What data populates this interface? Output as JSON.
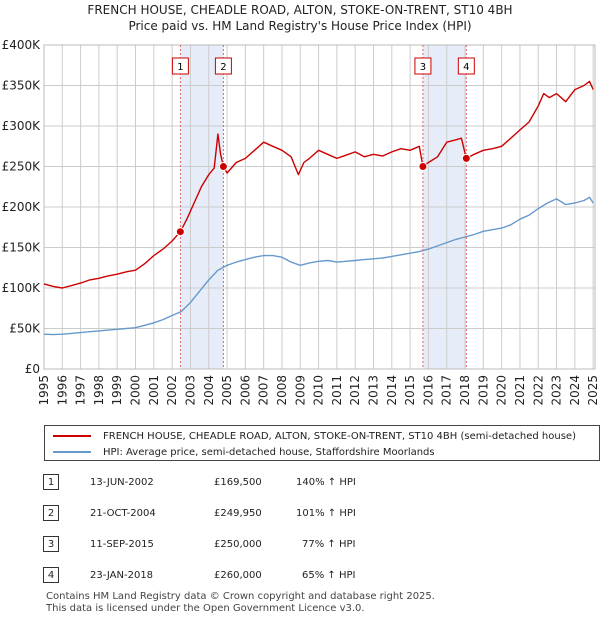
{
  "chart_data": {
    "type": "line",
    "title": "FRENCH HOUSE, CHEADLE ROAD, ALTON, STOKE-ON-TRENT, ST10 4BH",
    "subtitle": "Price paid vs. HM Land Registry's House Price Index (HPI)",
    "xlabel": "",
    "ylabel": "",
    "xlim": [
      1995,
      2025.1
    ],
    "ylim": [
      0,
      400000
    ],
    "y_ticks": [
      0,
      50000,
      100000,
      150000,
      200000,
      250000,
      300000,
      350000,
      400000
    ],
    "y_tick_labels": [
      "£0",
      "£50K",
      "£100K",
      "£150K",
      "£200K",
      "£250K",
      "£300K",
      "£350K",
      "£400K"
    ],
    "x_tick_labels": [
      "1995",
      "1996",
      "1997",
      "1998",
      "1999",
      "2000",
      "2001",
      "2002",
      "2003",
      "2004",
      "2005",
      "2006",
      "2007",
      "2008",
      "2009",
      "2010",
      "2011",
      "2012",
      "2013",
      "2014",
      "2015",
      "2016",
      "2017",
      "2018",
      "2019",
      "2020",
      "2021",
      "2022",
      "2023",
      "2024",
      "2025"
    ],
    "grid": true,
    "shaded_ranges": [
      [
        2002.45,
        2004.8
      ],
      [
        2015.7,
        2018.07
      ]
    ],
    "series": [
      {
        "name": "FRENCH HOUSE, CHEADLE ROAD, ALTON, STOKE-ON-TRENT, ST10 4BH (semi-detached house)",
        "color": "#cc0000",
        "x": [
          1995.0,
          1995.5,
          1996.0,
          1996.5,
          1997.0,
          1997.5,
          1998.0,
          1998.5,
          1999.0,
          1999.5,
          2000.0,
          2000.5,
          2001.0,
          2001.5,
          2002.0,
          2002.45,
          2002.8,
          2003.2,
          2003.6,
          2004.0,
          2004.3,
          2004.5,
          2004.65,
          2004.8,
          2005.0,
          2005.5,
          2006.0,
          2006.5,
          2007.0,
          2007.5,
          2008.0,
          2008.5,
          2008.9,
          2009.2,
          2009.5,
          2010.0,
          2010.5,
          2011.0,
          2011.5,
          2012.0,
          2012.5,
          2013.0,
          2013.5,
          2014.0,
          2014.5,
          2015.0,
          2015.5,
          2015.7,
          2016.0,
          2016.5,
          2017.0,
          2017.5,
          2017.8,
          2018.07,
          2018.5,
          2019.0,
          2019.5,
          2020.0,
          2020.5,
          2021.0,
          2021.5,
          2022.0,
          2022.3,
          2022.6,
          2023.0,
          2023.5,
          2024.0,
          2024.5,
          2024.8,
          2025.0
        ],
        "values": [
          105000,
          102000,
          100000,
          103000,
          106000,
          110000,
          112000,
          115000,
          117000,
          120000,
          122000,
          130000,
          140000,
          148000,
          158000,
          169500,
          185000,
          205000,
          225000,
          240000,
          248000,
          290000,
          265000,
          249950,
          242000,
          255000,
          260000,
          270000,
          280000,
          275000,
          270000,
          262000,
          240000,
          255000,
          260000,
          270000,
          265000,
          260000,
          264000,
          268000,
          262000,
          265000,
          263000,
          268000,
          272000,
          270000,
          275000,
          250000,
          255000,
          262000,
          280000,
          283000,
          285000,
          260000,
          265000,
          270000,
          272000,
          275000,
          285000,
          295000,
          305000,
          325000,
          340000,
          335000,
          340000,
          330000,
          345000,
          350000,
          355000,
          345000
        ]
      },
      {
        "name": "HPI: Average price, semi-detached house, Staffordshire Moorlands",
        "color": "#6699cc",
        "x": [
          1995.0,
          1995.5,
          1996.0,
          1996.5,
          1997.0,
          1997.5,
          1998.0,
          1998.5,
          1999.0,
          1999.5,
          2000.0,
          2000.5,
          2001.0,
          2001.5,
          2002.0,
          2002.5,
          2003.0,
          2003.5,
          2004.0,
          2004.5,
          2005.0,
          2005.5,
          2006.0,
          2006.5,
          2007.0,
          2007.5,
          2008.0,
          2008.5,
          2009.0,
          2009.5,
          2010.0,
          2010.5,
          2011.0,
          2011.5,
          2012.0,
          2012.5,
          2013.0,
          2013.5,
          2014.0,
          2014.5,
          2015.0,
          2015.5,
          2016.0,
          2016.5,
          2017.0,
          2017.5,
          2018.0,
          2018.5,
          2019.0,
          2019.5,
          2020.0,
          2020.5,
          2021.0,
          2021.5,
          2022.0,
          2022.5,
          2023.0,
          2023.5,
          2024.0,
          2024.5,
          2024.8,
          2025.0
        ],
        "values": [
          43000,
          42500,
          43000,
          44000,
          45000,
          46000,
          47000,
          48000,
          49000,
          50000,
          51000,
          54000,
          57000,
          61000,
          66000,
          71000,
          82000,
          96000,
          110000,
          122000,
          128000,
          132000,
          135000,
          138000,
          140000,
          140000,
          138000,
          132000,
          128000,
          131000,
          133000,
          134000,
          132000,
          133000,
          134000,
          135000,
          136000,
          137000,
          139000,
          141000,
          143000,
          145000,
          148000,
          152000,
          156000,
          160000,
          163000,
          166000,
          170000,
          172000,
          174000,
          178000,
          185000,
          190000,
          198000,
          205000,
          210000,
          203000,
          205000,
          208000,
          212000,
          205000
        ]
      }
    ],
    "annotations": [
      {
        "label": "1",
        "x": 2002.45
      },
      {
        "label": "2",
        "x": 2004.8
      },
      {
        "label": "3",
        "x": 2015.7
      },
      {
        "label": "4",
        "x": 2018.07
      }
    ],
    "sale_points": [
      {
        "x": 2002.45,
        "value": 169500
      },
      {
        "x": 2004.8,
        "value": 249950
      },
      {
        "x": 2015.7,
        "value": 250000
      },
      {
        "x": 2018.07,
        "value": 260000
      }
    ]
  },
  "legend": {
    "property_label": "FRENCH HOUSE, CHEADLE ROAD, ALTON, STOKE-ON-TRENT, ST10 4BH (semi-detached house)",
    "hpi_label": "HPI: Average price, semi-detached house, Staffordshire Moorlands"
  },
  "transactions": [
    {
      "num": "1",
      "date": "13-JUN-2002",
      "price": "£169,500",
      "hpi": "140% ↑ HPI"
    },
    {
      "num": "2",
      "date": "21-OCT-2004",
      "price": "£249,950",
      "hpi": "101% ↑ HPI"
    },
    {
      "num": "3",
      "date": "11-SEP-2015",
      "price": "£250,000",
      "hpi": "77% ↑ HPI"
    },
    {
      "num": "4",
      "date": "23-JAN-2018",
      "price": "£260,000",
      "hpi": "65% ↑ HPI"
    }
  ],
  "footer": {
    "line1": "Contains HM Land Registry data © Crown copyright and database right 2025.",
    "line2": "This data is licensed under the Open Government Licence v3.0."
  }
}
